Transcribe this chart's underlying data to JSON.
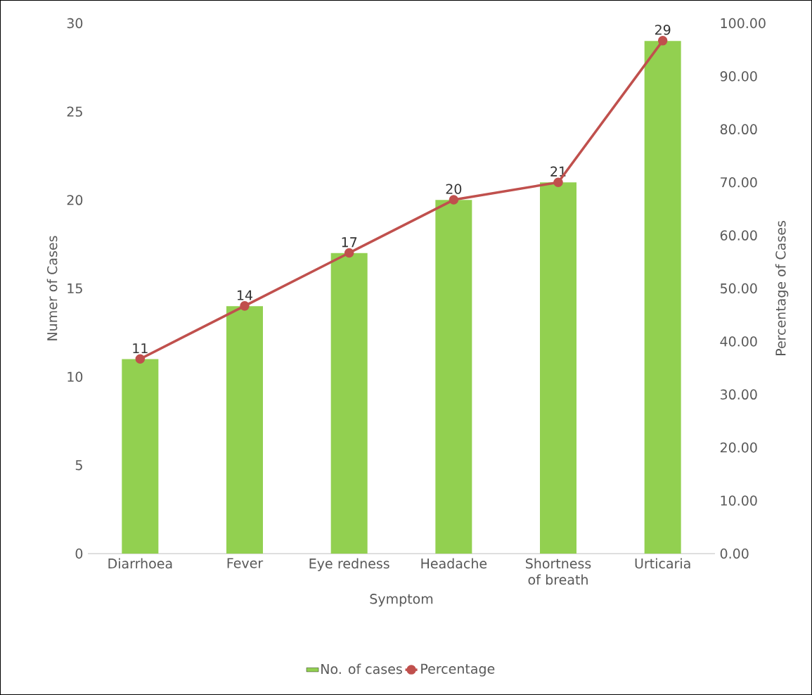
{
  "chart_data": {
    "type": "bar",
    "xlabel": "Symptom",
    "ylabel": "Numer of Cases",
    "y2label": "Percentage of Cases",
    "categories": [
      "Diarrhoea",
      "Fever",
      "Eye redness",
      "Headache",
      "Shortness of breath",
      "Urticaria"
    ],
    "series": [
      {
        "name": "No. of cases",
        "color": "#92d050",
        "values": [
          11,
          14,
          17,
          20,
          21,
          29
        ],
        "value_labels": [
          "11",
          "14",
          "17",
          "20",
          "21",
          "29"
        ]
      },
      {
        "name": "Percentage",
        "type": "line",
        "axis": "y2",
        "color": "#c0504d",
        "marker": "circle",
        "values": [
          36.7,
          46.7,
          56.7,
          66.7,
          70.0,
          96.7
        ]
      }
    ],
    "ylim": [
      0,
      30
    ],
    "yticks": [
      0,
      5,
      10,
      15,
      20,
      25,
      30
    ],
    "y2lim": [
      0,
      100
    ],
    "y2ticks": [
      {
        "value": 0,
        "label": "0.00"
      },
      {
        "value": 10,
        "label": "10.00"
      },
      {
        "value": 20,
        "label": "20.00"
      },
      {
        "value": 30,
        "label": "30.00"
      },
      {
        "value": 40,
        "label": "40.00"
      },
      {
        "value": 50,
        "label": "50.00"
      },
      {
        "value": 60,
        "label": "60.00"
      },
      {
        "value": 70,
        "label": "70.00"
      },
      {
        "value": 80,
        "label": "80.00"
      },
      {
        "value": 90,
        "label": "90.00"
      },
      {
        "value": 100,
        "label": "100.00"
      }
    ],
    "legend": "bottom"
  }
}
